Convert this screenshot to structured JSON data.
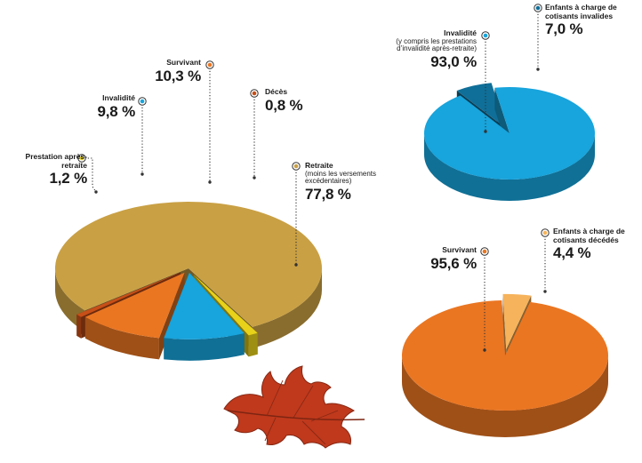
{
  "colors": {
    "retraite": "#c9a044",
    "invalidite": "#18a4dc",
    "survivant": "#ea7622",
    "deces": "#c74f18",
    "prestation": "#e8d21a",
    "enfants_invalides": "#0f6f99",
    "enfants_decedes": "#f6b35b",
    "leaf": "#c0391c"
  },
  "leaf": {
    "icon": "autumn-maple-leaf"
  },
  "chart_data": [
    {
      "type": "pie",
      "categories": [
        "Retraite",
        "Prestation après-retraite",
        "Invalidité",
        "Survivant",
        "Décès"
      ],
      "values": [
        77.8,
        1.2,
        9.8,
        10.3,
        0.8
      ],
      "value_labels": [
        "77,8 %",
        "1,2 %",
        "9,8 %",
        "10,3 %",
        "0,8 %"
      ],
      "notes": {
        "Retraite": "(moins les versements excédentaires)"
      },
      "exploded": [
        "Prestation après-retraite",
        "Invalidité",
        "Survivant",
        "Décès"
      ],
      "style": "3d"
    },
    {
      "type": "pie",
      "categories": [
        "Invalidité",
        "Enfants à charge de cotisants invalides"
      ],
      "values": [
        93.0,
        7.0
      ],
      "value_labels": [
        "93,0 %",
        "7,0 %"
      ],
      "notes": {
        "Invalidité": "(y compris les prestations d’invalidité après-retraite)"
      },
      "exploded": [
        "Enfants à charge de cotisants invalides"
      ],
      "style": "3d"
    },
    {
      "type": "pie",
      "categories": [
        "Survivant",
        "Enfants à charge de cotisants décédés"
      ],
      "values": [
        95.6,
        4.4
      ],
      "value_labels": [
        "95,6 %",
        "4,4 %"
      ],
      "exploded": [
        "Enfants à charge de cotisants décédés"
      ],
      "style": "3d"
    }
  ]
}
